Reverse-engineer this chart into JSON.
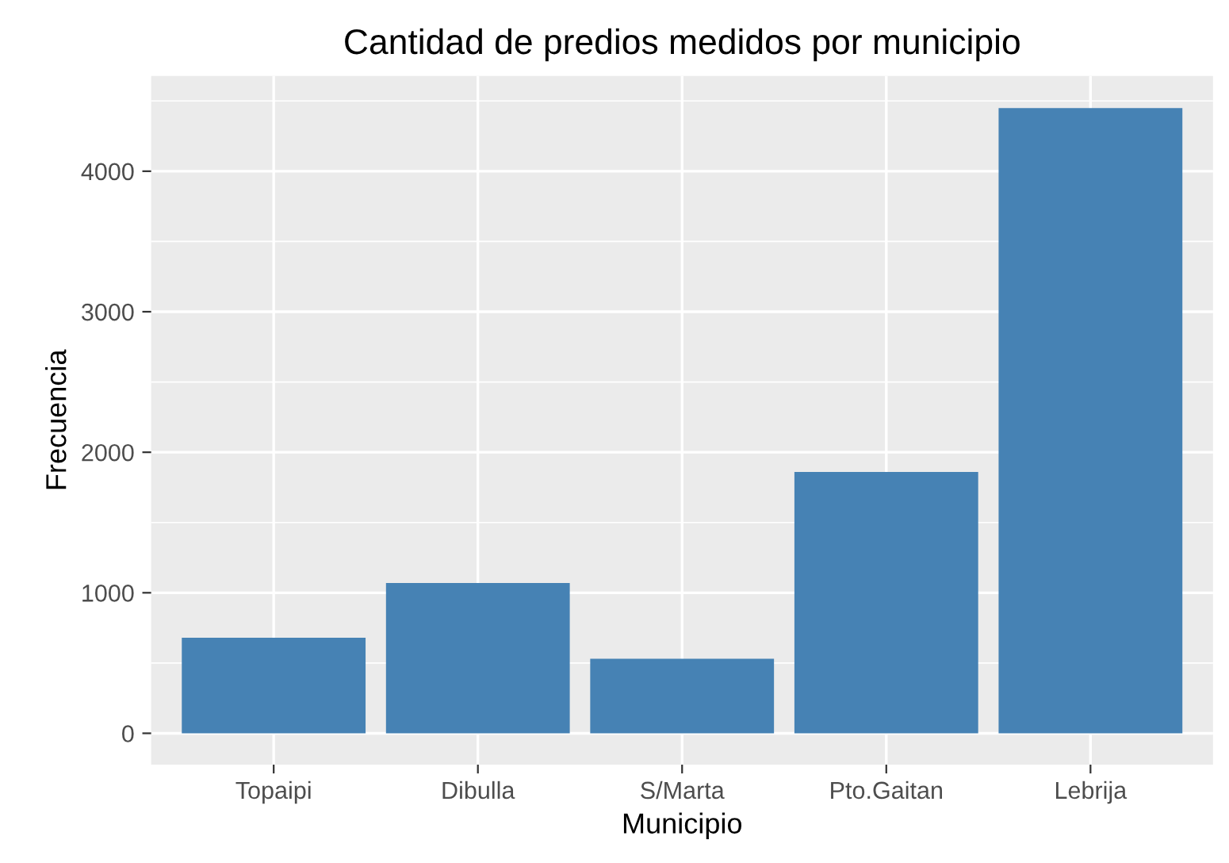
{
  "chart_data": {
    "type": "bar",
    "title": "Cantidad de predios medidos por municipio",
    "xlabel": "Municipio",
    "ylabel": "Frecuencia",
    "categories": [
      "Topaipi",
      "Dibulla",
      "S/Marta",
      "Pto.Gaitan",
      "Lebrija"
    ],
    "values": [
      680,
      1070,
      530,
      1860,
      4450
    ],
    "color": "#4682b4",
    "ylim": [
      -223,
      4678
    ],
    "yticks": [
      0,
      1000,
      2000,
      3000,
      4000
    ],
    "grid": true
  }
}
